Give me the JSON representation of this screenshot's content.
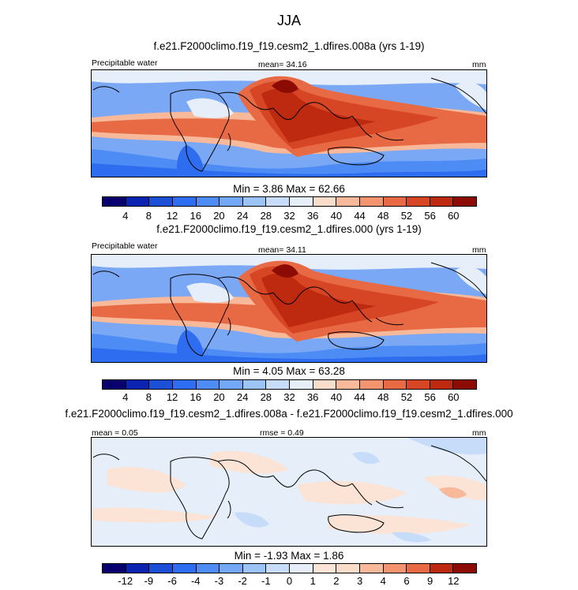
{
  "figure": {
    "season": "JJA"
  },
  "panels": [
    {
      "heading": "f.e21.F2000climo.f19_f19.cesm2_1.dfires.008a (yrs 1-19)",
      "variable": "Precipitable water",
      "stat": "mean=  34.16",
      "units": "mm",
      "minmax": "Min =   3.86 Max =  62.66"
    },
    {
      "heading": "f.e21.F2000climo.f19_f19.cesm2_1.dfires.000 (yrs 1-19)",
      "variable": "Precipitable water",
      "stat": "mean=  34.11",
      "units": "mm",
      "minmax": "Min =   4.05 Max =  63.28"
    },
    {
      "heading": "f.e21.F2000climo.f19_f19.cesm2_1.dfires.008a - f.e21.F2000climo.f19_f19.cesm2_1.dfires.000",
      "stat_left": "mean =   0.05",
      "stat": "rmse =   0.49",
      "units": "mm",
      "minmax": "Min =  -1.93 Max =    1.86"
    }
  ],
  "colorbars": {
    "abs": {
      "colors": [
        "#08006e",
        "#0a23b0",
        "#1b4fd6",
        "#2e6df0",
        "#4d8cf5",
        "#73a8f7",
        "#9cc3f8",
        "#c6dcf8",
        "#e6eff9",
        "#fadccb",
        "#f7b99a",
        "#f29470",
        "#e86a45",
        "#d74624",
        "#bd2a10",
        "#8c0b05"
      ],
      "labels": [
        "4",
        "8",
        "12",
        "16",
        "20",
        "24",
        "28",
        "32",
        "36",
        "40",
        "44",
        "48",
        "52",
        "56",
        "60"
      ]
    },
    "diff": {
      "colors": [
        "#08006e",
        "#0a23b0",
        "#1b4fd6",
        "#2e6df0",
        "#4d8cf5",
        "#73a8f7",
        "#9cc3f8",
        "#c6dcf8",
        "#e6eff9",
        "#fbe3d6",
        "#fadccb",
        "#f7b99a",
        "#f29470",
        "#e86a45",
        "#bd2a10",
        "#8c0b05"
      ],
      "labels": [
        "-12",
        "-9",
        "-6",
        "-4",
        "-3",
        "-2",
        "-1",
        "0",
        "1",
        "2",
        "3",
        "4",
        "6",
        "9",
        "12"
      ]
    }
  },
  "chart_data": [
    {
      "type": "heatmap",
      "title": "f.e21.F2000climo.f19_f19.cesm2_1.dfires.008a (yrs 1-19)",
      "variable": "Precipitable water",
      "units": "mm",
      "mean": 34.16,
      "min": 3.86,
      "max": 62.66,
      "contour_levels": [
        4,
        8,
        12,
        16,
        20,
        24,
        28,
        32,
        36,
        40,
        44,
        48,
        52,
        56,
        60
      ]
    },
    {
      "type": "heatmap",
      "title": "f.e21.F2000climo.f19_f19.cesm2_1.dfires.000 (yrs 1-19)",
      "variable": "Precipitable water",
      "units": "mm",
      "mean": 34.11,
      "min": 4.05,
      "max": 63.28,
      "contour_levels": [
        4,
        8,
        12,
        16,
        20,
        24,
        28,
        32,
        36,
        40,
        44,
        48,
        52,
        56,
        60
      ]
    },
    {
      "type": "heatmap",
      "title": "f.e21.F2000climo.f19_f19.cesm2_1.dfires.008a - f.e21.F2000climo.f19_f19.cesm2_1.dfires.000",
      "units": "mm",
      "mean": 0.05,
      "rmse": 0.49,
      "min": -1.93,
      "max": 1.86,
      "contour_levels": [
        -12,
        -9,
        -6,
        -4,
        -3,
        -2,
        -1,
        0,
        1,
        2,
        3,
        4,
        6,
        9,
        12
      ]
    }
  ]
}
